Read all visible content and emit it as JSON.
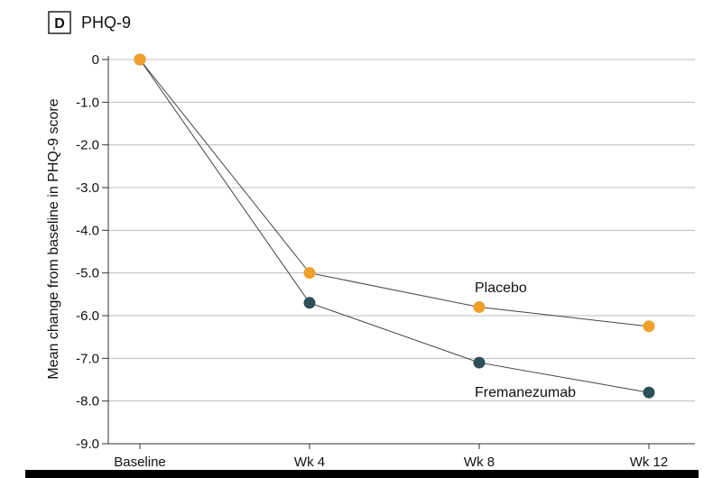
{
  "panel": {
    "letter": "D",
    "title": "PHQ-9"
  },
  "chart_data": {
    "type": "line",
    "title": "PHQ-9",
    "categories": [
      "Baseline",
      "Wk 4",
      "Wk 8",
      "Wk 12"
    ],
    "xlabel": "",
    "ylabel": "Mean change from baseline in PHQ-9 score",
    "ylim": [
      -9.0,
      0
    ],
    "yticks": [
      0,
      -1.0,
      -2.0,
      -3.0,
      -4.0,
      -5.0,
      -6.0,
      -7.0,
      -8.0,
      -9.0
    ],
    "ytick_labels": [
      "0",
      "-1.0",
      "-2.0",
      "-3.0",
      "-4.0",
      "-5.0",
      "-6.0",
      "-7.0",
      "-8.0",
      "-9.0"
    ],
    "grid": true,
    "series": [
      {
        "name": "Placebo",
        "values": [
          0,
          -5.0,
          -5.8,
          -6.25
        ],
        "color": "#f0a02a"
      },
      {
        "name": "Fremanezumab",
        "values": [
          0,
          -5.7,
          -7.1,
          -7.8
        ],
        "color": "#2d5058"
      }
    ]
  }
}
